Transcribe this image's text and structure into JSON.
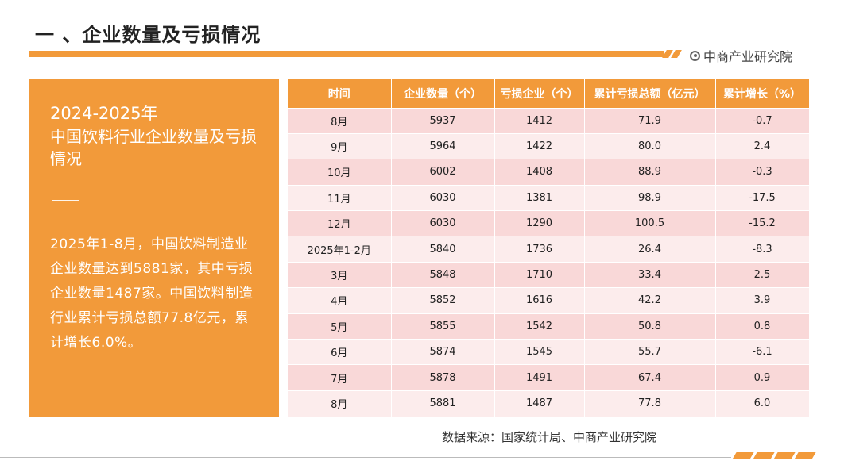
{
  "header": {
    "title": "一 、企业数量及亏损情况",
    "logo_text": "中商产业研究院"
  },
  "panel": {
    "year": "2024-2025年",
    "title": "中国饮料行业企业数量及亏损情况",
    "body": "2025年1-8月，中国饮料制造业企业数量达到5881家，其中亏损企业数量1487家。中国饮料制造行业累计亏损总额77.8亿元，累计增长6.0%。"
  },
  "table": {
    "headers": [
      "时间",
      "企业数量（个）",
      "亏损企业（个）",
      "累计亏损总额（亿元）",
      "累计增长（%）"
    ],
    "rows": [
      [
        "8月",
        "5937",
        "1412",
        "71.9",
        "-0.7"
      ],
      [
        "9月",
        "5964",
        "1422",
        "80.0",
        "2.4"
      ],
      [
        "10月",
        "6002",
        "1408",
        "88.9",
        "-0.3"
      ],
      [
        "11月",
        "6030",
        "1381",
        "98.9",
        "-17.5"
      ],
      [
        "12月",
        "6030",
        "1290",
        "100.5",
        "-15.2"
      ],
      [
        "2025年1-2月",
        "5840",
        "1736",
        "26.4",
        "-8.3"
      ],
      [
        "3月",
        "5848",
        "1710",
        "33.4",
        "2.5"
      ],
      [
        "4月",
        "5852",
        "1616",
        "42.2",
        "3.9"
      ],
      [
        "5月",
        "5855",
        "1542",
        "50.8",
        "0.8"
      ],
      [
        "6月",
        "5874",
        "1545",
        "55.7",
        "-6.1"
      ],
      [
        "7月",
        "5878",
        "1491",
        "67.4",
        "0.9"
      ],
      [
        "8月",
        "5881",
        "1487",
        "77.8",
        "6.0"
      ]
    ]
  },
  "source": "数据来源：国家统计局、中商产业研究院",
  "colors": {
    "accent": "#f29a3a",
    "row_odd": "#f9d8d8",
    "row_even": "#fcecec"
  }
}
